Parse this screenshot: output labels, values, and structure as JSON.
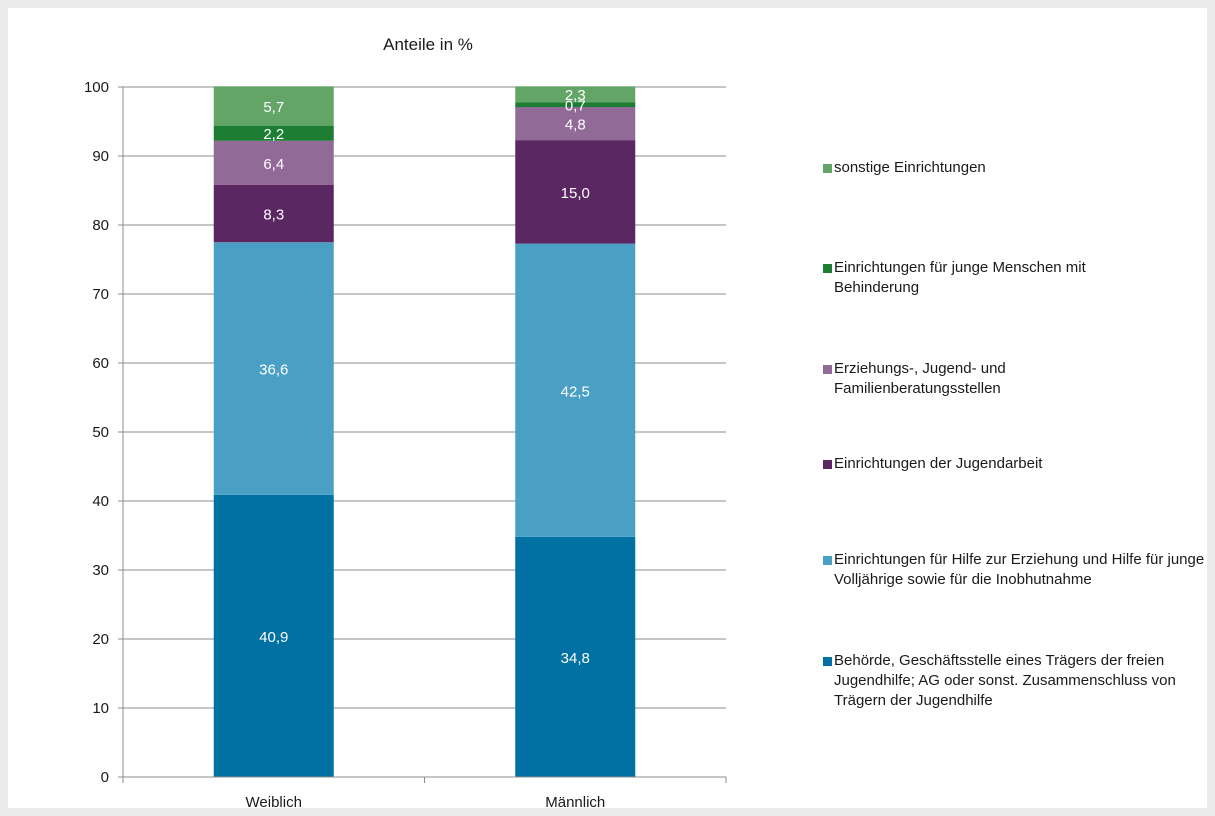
{
  "chart_data": {
    "type": "bar",
    "stacked": true,
    "title": "Anteile in %",
    "xlabel": "",
    "ylabel": "",
    "ylim": [
      0,
      100
    ],
    "yticks": [
      "0",
      "10",
      "20",
      "30",
      "40",
      "50",
      "60",
      "70",
      "80",
      "90",
      "100"
    ],
    "categories": [
      "Weiblich",
      "Männlich"
    ],
    "grid": true,
    "legend_position": "right",
    "series": [
      {
        "name": "Behörde, Geschäftsstelle eines Trägers der freien Jugendhilfe; AG oder sonst. Zusammenschluss von Trägern der Jugendhilfe",
        "color": "#0071a2",
        "values": [
          40.9,
          34.8
        ],
        "labels": [
          "40,9",
          "34,8"
        ]
      },
      {
        "name": "Einrichtungen für Hilfe zur Erziehung und Hilfe für junge Volljährige sowie für die Inobhutnahme",
        "color": "#4aa0c4",
        "values": [
          36.6,
          42.5
        ],
        "labels": [
          "36,6",
          "42,5"
        ]
      },
      {
        "name": "Einrichtungen der Jugendarbeit",
        "color": "#5a2762",
        "values": [
          8.3,
          15.0
        ],
        "labels": [
          "8,3",
          "15,0"
        ]
      },
      {
        "name": "Erziehungs-, Jugend- und Familienberatungsstellen",
        "color": "#926a97",
        "values": [
          6.4,
          4.8
        ],
        "labels": [
          "6,4",
          "4,8"
        ]
      },
      {
        "name": "Einrichtungen für junge Menschen mit Behinderung",
        "color": "#1c7d33",
        "values": [
          2.2,
          0.7
        ],
        "labels": [
          "2,2",
          "0,7"
        ]
      },
      {
        "name": "sonstige Einrichtungen",
        "color": "#62a566",
        "values": [
          5.7,
          2.3
        ],
        "labels": [
          "5,7",
          "2,3"
        ]
      }
    ]
  }
}
